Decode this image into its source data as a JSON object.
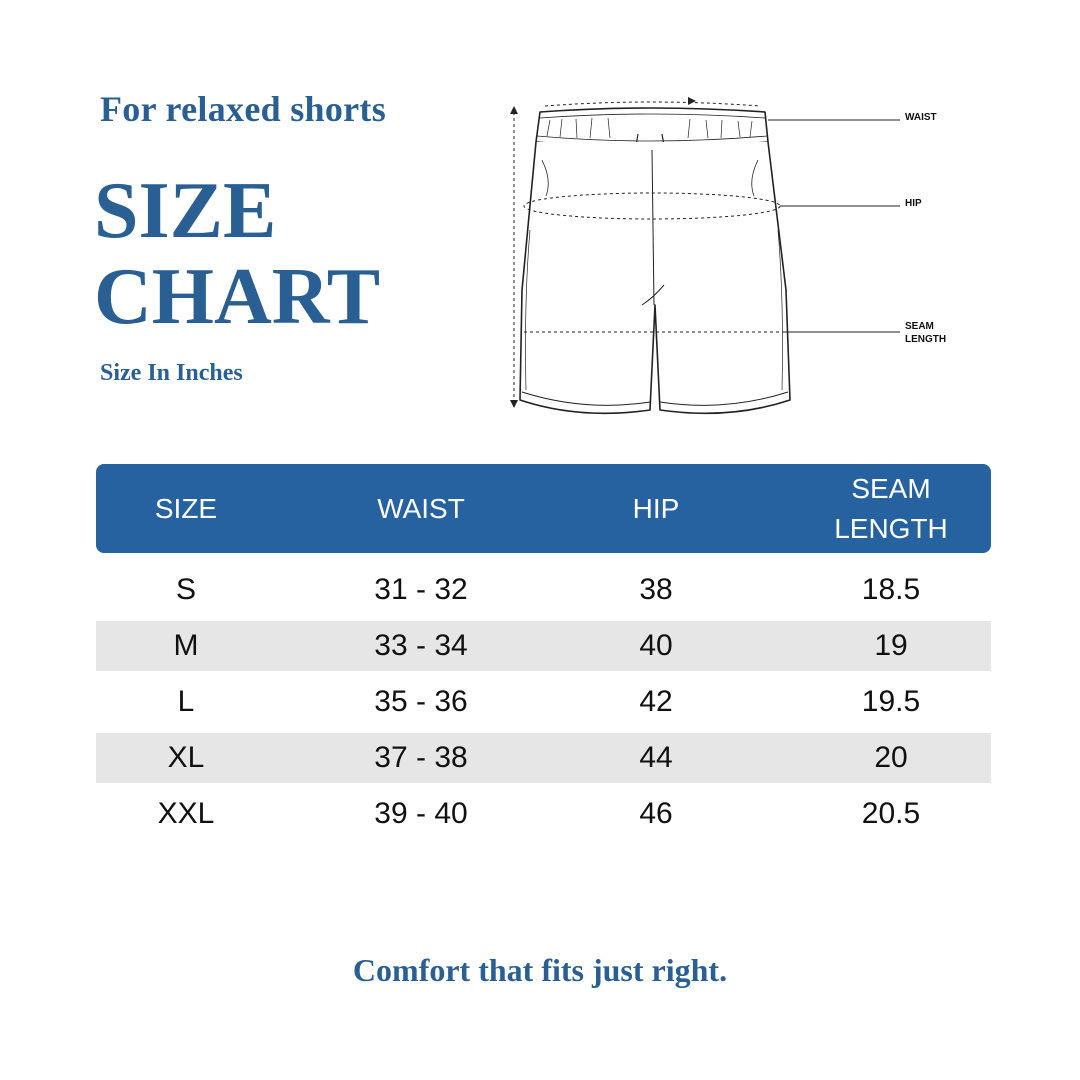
{
  "header": {
    "subtitle": "For relaxed shorts",
    "title_line1": "SIZE",
    "title_line2": "CHART",
    "units": "Size In Inches"
  },
  "diagram": {
    "labels": {
      "waist": "WAIST",
      "hip": "HIP",
      "seam_line1": "SEAM",
      "seam_line2": "LENGTH"
    }
  },
  "table": {
    "headers": [
      "SIZE",
      "WAIST",
      "HIP",
      "SEAM\nLENGTH"
    ],
    "header_seam_line1": "SEAM",
    "header_seam_line2": "LENGTH",
    "rows": [
      [
        "S",
        "31 - 32",
        "38",
        "18.5"
      ],
      [
        "M",
        "33 - 34",
        "40",
        "19"
      ],
      [
        "L",
        "35 - 36",
        "42",
        "19.5"
      ],
      [
        "XL",
        "37 - 38",
        "44",
        "20"
      ],
      [
        "XXL",
        "39 - 40",
        "46",
        "20.5"
      ]
    ]
  },
  "footer": {
    "tagline": "Comfort that fits just right."
  },
  "colors": {
    "accent": "#2662a0",
    "text_blue": "#2a5f93",
    "row_shade": "#e6e6e6"
  }
}
